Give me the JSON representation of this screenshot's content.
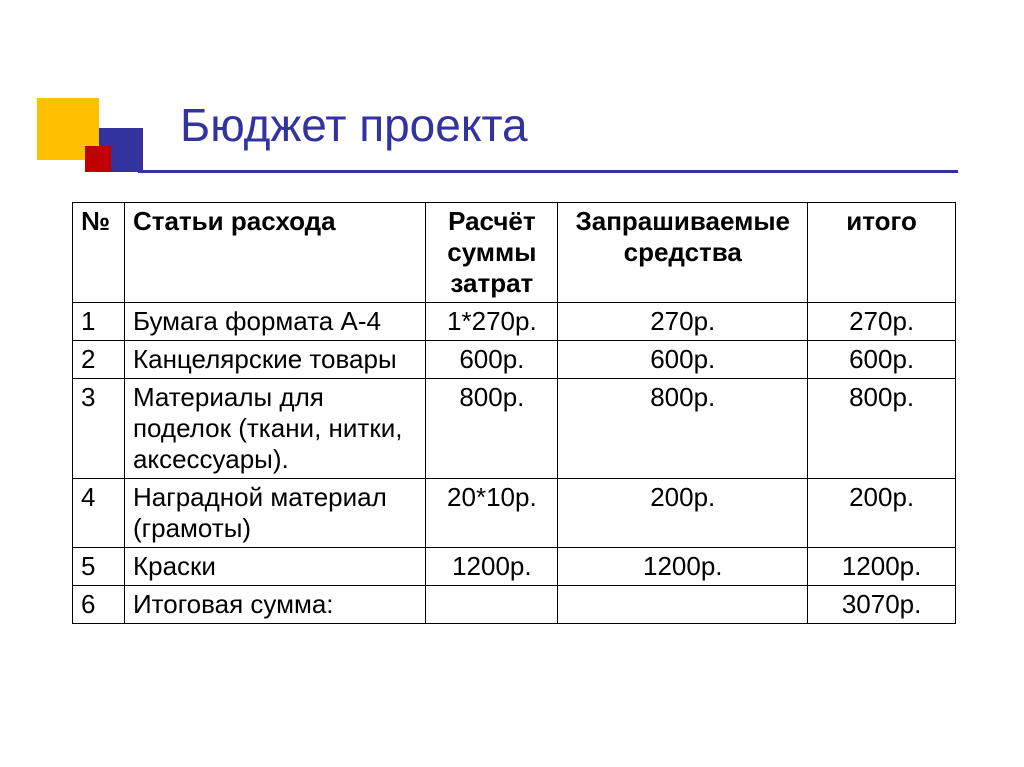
{
  "title": "Бюджет проекта",
  "colors": {
    "yellow": "#ffc000",
    "red": "#c00000",
    "blue": "#3333a0",
    "border": "#000000",
    "background": "#ffffff"
  },
  "table": {
    "headers": {
      "num": "№",
      "item": "Статьи расхода",
      "calc": "Расчёт суммы затрат",
      "req": "Запрашиваемые средства",
      "total": "итого"
    },
    "rows": [
      {
        "num": "1",
        "item": "Бумага формата А-4",
        "calc": "1*270р.",
        "req": "270р.",
        "total": "270р."
      },
      {
        "num": "2",
        "item": "Канцелярские товары",
        "calc": "600р.",
        "req": "600р.",
        "total": "600р."
      },
      {
        "num": "3",
        "item": "Материалы для поделок (ткани, нитки, аксессуары).",
        "calc": "800р.",
        "req": "800р.",
        "total": "800р."
      },
      {
        "num": "4",
        "item": "Наградной материал (грамоты)",
        "calc": "20*10р.",
        "req": "200р.",
        "total": "200р."
      },
      {
        "num": "5",
        "item": "Краски",
        "calc": "1200р.",
        "req": "1200р.",
        "total": "1200р."
      },
      {
        "num": "6",
        "item": "Итоговая сумма:",
        "calc": "",
        "req": "",
        "total": "3070р."
      }
    ],
    "font_size": 26,
    "header_font_weight": "bold",
    "column_widths": {
      "num": 52,
      "item": 302,
      "calc": 132,
      "req": 250,
      "total": 148
    }
  },
  "title_style": {
    "font_size": 46,
    "color": "#3333a0"
  }
}
